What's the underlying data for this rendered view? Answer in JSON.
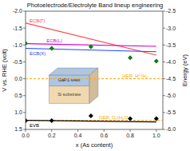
{
  "chart_data": {
    "type": "line",
    "title": "Photoelectrode/Electrolyte Band lineup engineering",
    "x_label": "x (As content)",
    "y_label": "V vs. RHE (volt)",
    "y2_label": "Energy (eV)",
    "xlim": [
      0.0,
      1.05
    ],
    "xticks": [
      {
        "value": 0.0,
        "label": "0.0"
      },
      0.2,
      0.4,
      0.6,
      0.8,
      {
        "value": 1.0,
        "label": "1.0"
      }
    ],
    "ylim": [
      1.5,
      -2.0
    ],
    "yticks": [
      {
        "value": -2.0,
        "label": "-2.0"
      },
      -1.5,
      {
        "value": -1.0,
        "label": "-1.0"
      },
      -0.5,
      {
        "value": 0.0,
        "label": "0.0"
      },
      0.5,
      {
        "value": 1.0,
        "label": "1.0"
      },
      1.5
    ],
    "y2lim": [
      -6.0,
      -2.5
    ],
    "y2ticks": [
      -2.5,
      {
        "value": -3.0,
        "label": "-3.0"
      },
      -3.5,
      {
        "value": -4.0,
        "label": "-4.0"
      },
      -4.5,
      {
        "value": -5.0,
        "label": "-5.0"
      },
      -5.5,
      {
        "value": -6.0,
        "label": "-6.0"
      }
    ],
    "series": [
      {
        "type": "hline",
        "name": "HER: H⁺/H₂",
        "color": "orange",
        "line_style": "dashed",
        "values": [
          0.0
        ]
      },
      {
        "type": "hline",
        "name": "OER: O₂/H₂O",
        "color": "orange",
        "line_style": "dashed",
        "values": [
          1.23
        ]
      },
      {
        "type": "line",
        "name": "ECB(Γ)",
        "color": "#FF4444",
        "x": [
          0.0,
          1.0
        ],
        "values": [
          -1.65,
          -0.7
        ]
      },
      {
        "type": "line",
        "name": "ECB(L)",
        "color": "#CC00CC",
        "x": [
          0.0,
          1.0
        ],
        "values": [
          -1.04,
          -0.96
        ]
      },
      {
        "type": "line",
        "name": "ECB(X)",
        "color": "#2244FF",
        "x": [
          0.0,
          1.0
        ],
        "values": [
          -0.9,
          -0.8
        ]
      },
      {
        "type": "line",
        "name": "EVB",
        "color": "#000000",
        "x": [
          0.0,
          1.0
        ],
        "values": [
          1.23,
          1.28
        ]
      },
      {
        "type": "scatter",
        "color": "green",
        "marker": "diamond",
        "x": [
          0.0,
          0.2,
          0.5,
          0.8,
          1.0
        ],
        "values": [
          -1.05,
          -0.9,
          -0.95,
          -0.62,
          -0.52
        ]
      },
      {
        "type": "scatter",
        "color": "black",
        "marker": "diamond",
        "x": [
          0.0,
          0.2,
          0.5,
          0.8,
          1.0
        ],
        "values": [
          1.24,
          1.24,
          1.1,
          1.18,
          1.18
        ]
      }
    ],
    "annotations": [
      {
        "text": "GaP1-xAsx",
        "color": "#aec6e0"
      },
      {
        "text": "Si substrate",
        "color": "#f0d8b0"
      }
    ]
  }
}
